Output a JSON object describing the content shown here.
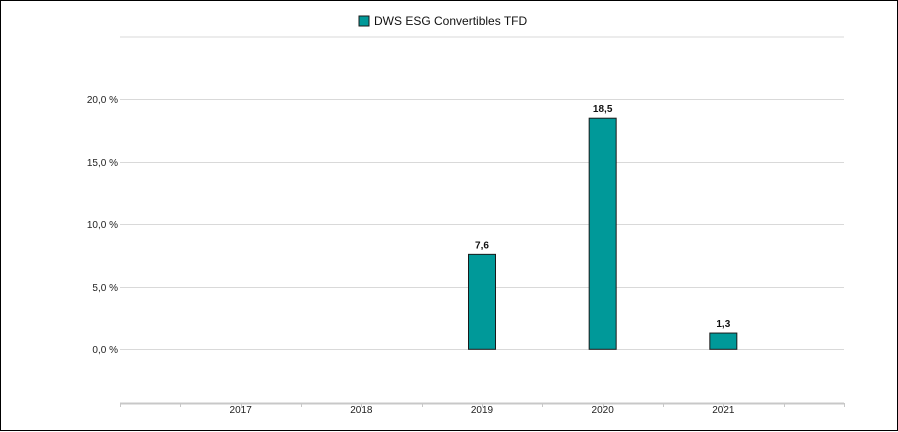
{
  "chart_data": {
    "type": "bar",
    "categories": [
      "2017",
      "2018",
      "2019",
      "2020",
      "2021"
    ],
    "series": [
      {
        "name": "DWS ESG Convertibles  TFD",
        "values": [
          null,
          null,
          7.6,
          18.5,
          1.3
        ],
        "labels": [
          "",
          "",
          "7,6",
          "18,5",
          "1,3"
        ]
      }
    ],
    "y_ticks": [
      {
        "value": 0,
        "label": "0,0 %"
      },
      {
        "value": 5,
        "label": "5,0 %"
      },
      {
        "value": 10,
        "label": "10,0 %"
      },
      {
        "value": 15,
        "label": "15,0 %"
      },
      {
        "value": 20,
        "label": "20,0 %"
      }
    ],
    "ylim": [
      -4.3,
      25
    ],
    "title": "",
    "xlabel": "",
    "ylabel": "",
    "grid": true,
    "legend_position": "top-center",
    "colors": {
      "bar": "#009999",
      "bar_stroke": "#1a1a1a",
      "grid": "#d9d9d9",
      "axis": "#c8c8c8"
    }
  }
}
